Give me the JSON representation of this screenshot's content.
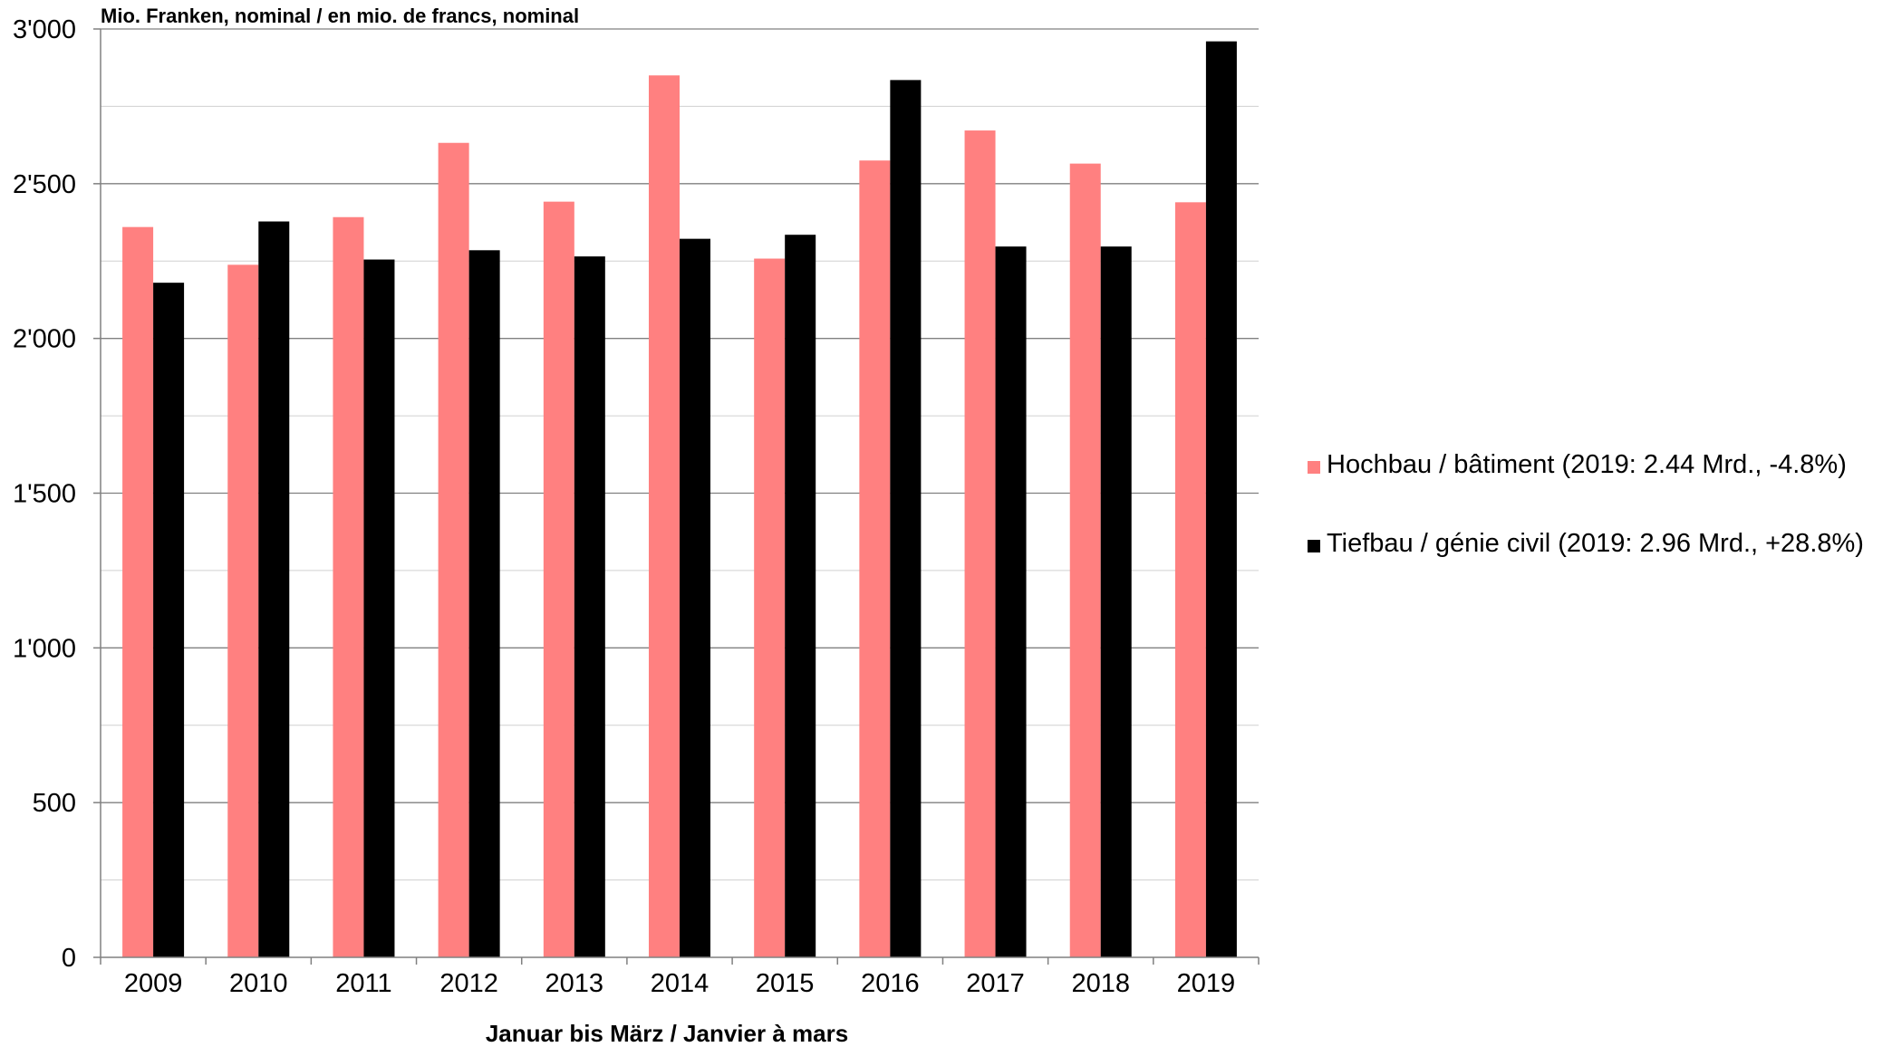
{
  "chart_data": {
    "type": "bar",
    "ylabel": "Mio. Franken, nominal / en mio. de francs, nominal",
    "xlabel": "Januar bis März / Janvier à mars",
    "categories": [
      "2009",
      "2010",
      "2011",
      "2012",
      "2013",
      "2014",
      "2015",
      "2016",
      "2017",
      "2018",
      "2019"
    ],
    "series": [
      {
        "name": "Hochbau / bâtiment (2019: 2.44 Mrd., -4.8%)",
        "color": "#ff8080",
        "values": [
          2360,
          2238,
          2392,
          2632,
          2442,
          2850,
          2258,
          2575,
          2672,
          2565,
          2440
        ]
      },
      {
        "name": "Tiefbau / génie civil (2019: 2.96 Mrd., +28.8%)",
        "color": "#000000",
        "values": [
          2180,
          2378,
          2255,
          2285,
          2265,
          2322,
          2335,
          2835,
          2297,
          2297,
          2960
        ]
      }
    ],
    "ylim": [
      0,
      3000
    ],
    "yticks": [
      {
        "value": 0,
        "label": "0"
      },
      {
        "value": 500,
        "label": "500"
      },
      {
        "value": 1000,
        "label": "1'000"
      },
      {
        "value": 1500,
        "label": "1'500"
      },
      {
        "value": 2000,
        "label": "2'000"
      },
      {
        "value": 2500,
        "label": "2'500"
      },
      {
        "value": 3000,
        "label": "3'000"
      }
    ],
    "grid": true,
    "minor_grid_step": 250,
    "legend_position": "right"
  }
}
